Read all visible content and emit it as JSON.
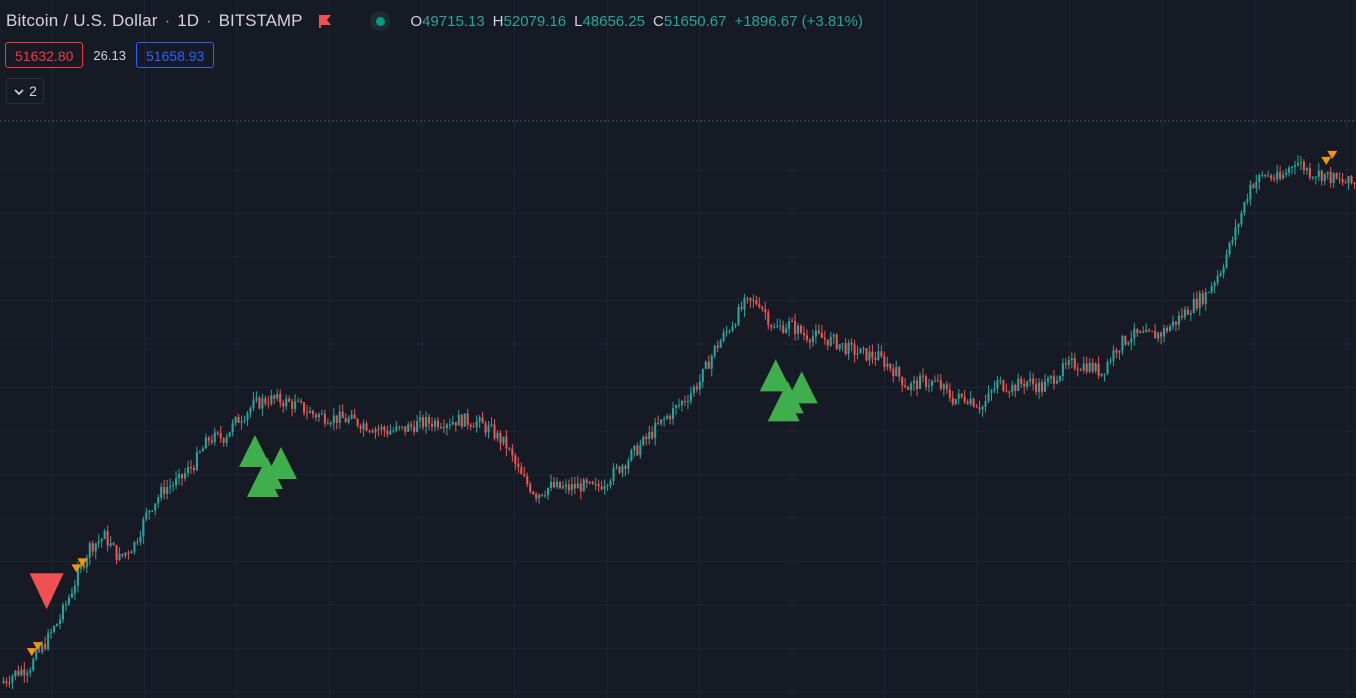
{
  "header": {
    "symbol": "Bitcoin / U.S. Dollar",
    "interval": "1D",
    "exchange": "BITSTAMP",
    "flag_icon": "flag-icon",
    "eye_icon": "eye-icon",
    "ohlc": {
      "o_label": "O",
      "o_value": "49715.13",
      "h_label": "H",
      "h_value": "52079.16",
      "l_label": "L",
      "l_value": "48656.25",
      "c_label": "C",
      "c_value": "51650.67",
      "change": "+1896.67 (+3.81%)"
    }
  },
  "trade": {
    "sell_price": "51632.80",
    "spread": "26.13",
    "buy_price": "51658.93"
  },
  "indicators": {
    "count": "2",
    "chevron_icon": "chevron-down-icon"
  },
  "colors": {
    "background": "#161a25",
    "grid": "#1f2433",
    "up": "#26a69a",
    "down": "#ef5350",
    "sell_signal": "#f05050",
    "buy_signal": "#3fae4d",
    "small_signal": "#f5940d"
  },
  "chart_data": {
    "type": "candlestick",
    "symbol": "Bitcoin / U.S. Dollar",
    "interval": "1D",
    "price_path": [
      15,
      25,
      32,
      55,
      80,
      116,
      152,
      162,
      140,
      155,
      190,
      210,
      218,
      235,
      260,
      262,
      280,
      294,
      300,
      298,
      293,
      285,
      282,
      280,
      277,
      272,
      268,
      269,
      275,
      277,
      278,
      279,
      277,
      268,
      253,
      222,
      205,
      212,
      210,
      213,
      210,
      223,
      237,
      253,
      270,
      285,
      300,
      318,
      350,
      372,
      395,
      398,
      370,
      375,
      365,
      362,
      358,
      350,
      345,
      342,
      330,
      312,
      318,
      315,
      300,
      302,
      292,
      316,
      312,
      318,
      311,
      325,
      335,
      334,
      327,
      352,
      364,
      363,
      366,
      378,
      393,
      405,
      430,
      468,
      515,
      525,
      520,
      540,
      528,
      525,
      518,
      516
    ],
    "signals": {
      "large_sell": [
        3
      ],
      "large_buy": [
        17,
        52
      ],
      "small_sell": [
        2,
        5,
        89
      ]
    }
  }
}
